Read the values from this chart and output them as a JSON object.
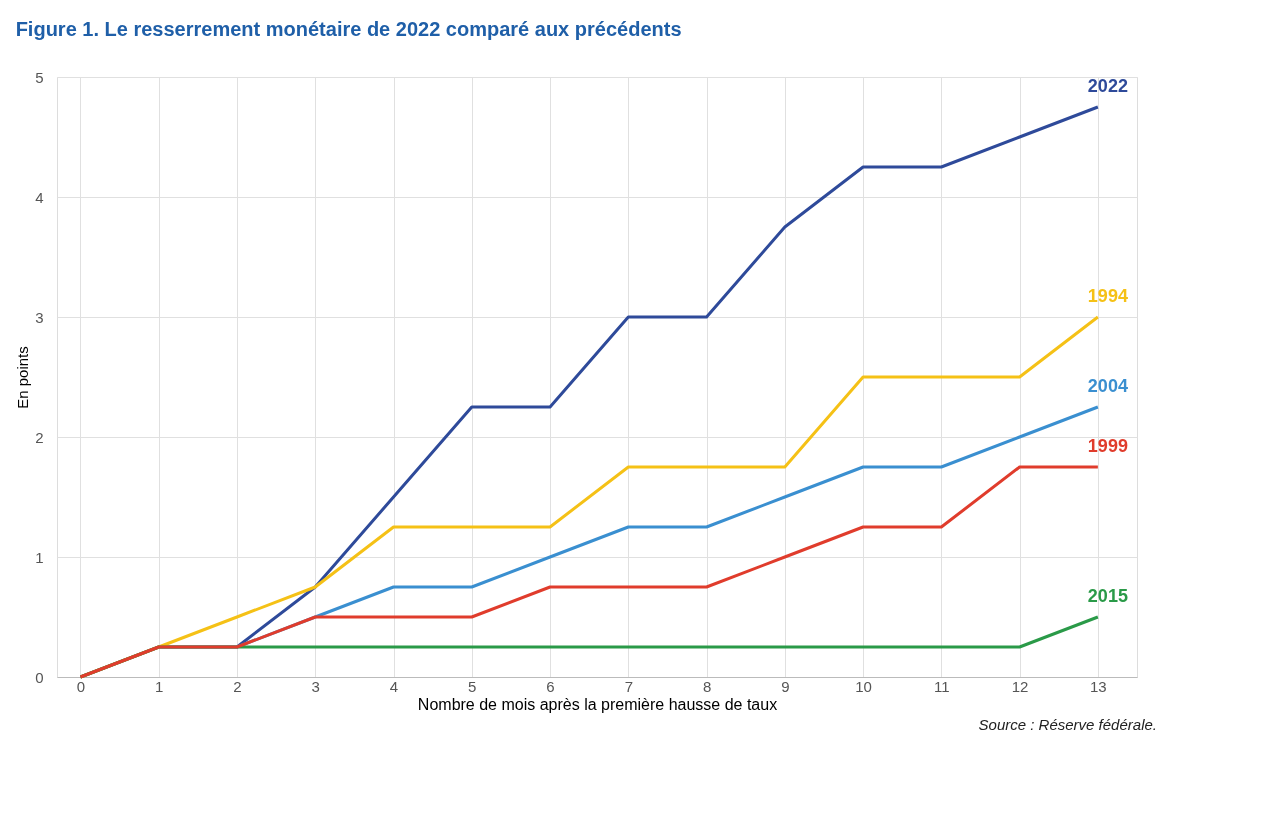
{
  "chart_data": {
    "type": "line",
    "title": "Figure 1. Le resserrement monétaire de 2022 comparé aux précédents",
    "xlabel": "Nombre de mois après la première hausse de taux",
    "ylabel": "En points",
    "x": [
      0,
      1,
      2,
      3,
      4,
      5,
      6,
      7,
      8,
      9,
      10,
      11,
      12,
      13
    ],
    "series": [
      {
        "name": "2022",
        "color": "#2e4a9a",
        "values": [
          0,
          0.25,
          0.25,
          0.75,
          1.5,
          2.25,
          2.25,
          3,
          3,
          3.75,
          4.25,
          4.25,
          4.5,
          4.75
        ]
      },
      {
        "name": "1994",
        "color": "#f5c116",
        "values": [
          0,
          0.25,
          0.5,
          0.75,
          1.25,
          1.25,
          1.25,
          1.75,
          1.75,
          1.75,
          2.5,
          2.5,
          2.5,
          3
        ]
      },
      {
        "name": "2004",
        "color": "#3a8fd0",
        "values": [
          null,
          null,
          0.25,
          0.5,
          0.75,
          0.75,
          1,
          1.25,
          1.25,
          1.5,
          1.75,
          1.75,
          2,
          2.25
        ]
      },
      {
        "name": "2015",
        "color": "#2a9a48",
        "values": [
          0,
          0.25,
          0.25,
          0.25,
          0.25,
          0.25,
          0.25,
          0.25,
          0.25,
          0.25,
          0.25,
          0.25,
          0.25,
          0.5
        ]
      },
      {
        "name": "1999",
        "color": "#e03c2c",
        "values": [
          0,
          0.25,
          0.25,
          0.5,
          0.5,
          0.5,
          0.75,
          0.75,
          0.75,
          1,
          1.25,
          1.25,
          1.75,
          1.75
        ]
      }
    ],
    "xlim": [
      -0.3,
      13.5
    ],
    "xticks": [
      0,
      1,
      2,
      3,
      4,
      5,
      6,
      7,
      8,
      9,
      10,
      11,
      12,
      13
    ],
    "ylim": [
      0,
      5
    ],
    "yticks": [
      0,
      1,
      2,
      3,
      4,
      5
    ],
    "grid": true,
    "legend": false,
    "marker": "none",
    "line_style": "solid",
    "annotations": [
      "Source : Réserve fédérale."
    ]
  }
}
